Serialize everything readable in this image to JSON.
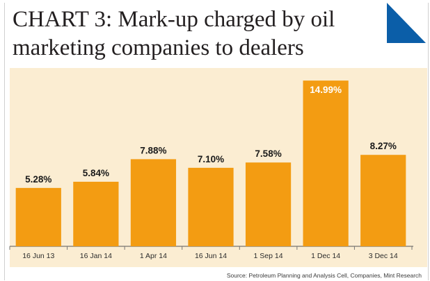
{
  "title_line1": "CHART 3: Mark-up charged by oil",
  "title_line2": "marketing companies to dealers",
  "source": "Source: Petroleum Planning and Analysis Cell, Companies, Mint Research",
  "colors": {
    "bar": "#f39c12",
    "plot_bg": "#fbedd2",
    "corner": "#0b5ea8"
  },
  "chart_data": {
    "type": "bar",
    "categories": [
      "16 Jun 13",
      "16 Jan 14",
      "1 Apr 14",
      "16 Jun 14",
      "1 Sep 14",
      "1 Dec 14",
      "3 Dec 14"
    ],
    "values": [
      5.28,
      5.84,
      7.88,
      7.1,
      7.58,
      14.99,
      8.27
    ],
    "labels": [
      "5.28%",
      "5.84%",
      "7.88%",
      "7.10%",
      "7.58%",
      "14.99%",
      "8.27%"
    ],
    "ylim": [
      0,
      15.5
    ],
    "xlabel": "",
    "ylabel": "",
    "grid": false
  }
}
